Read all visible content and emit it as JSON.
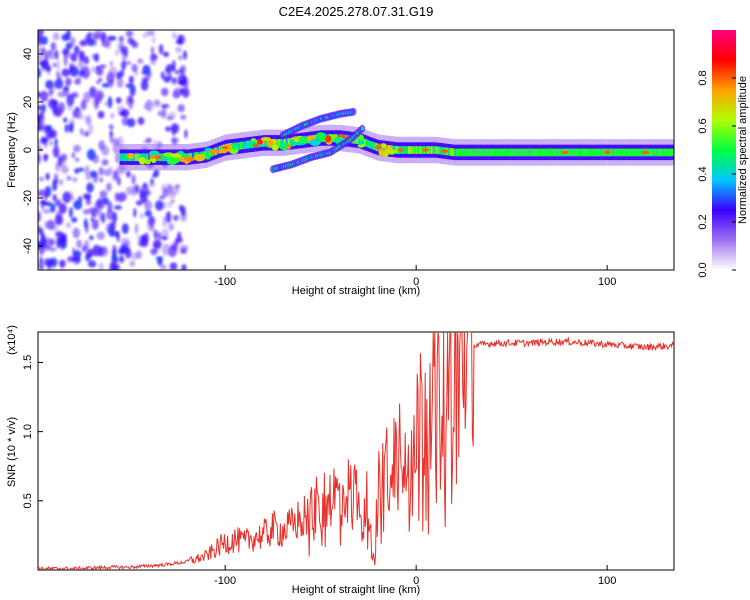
{
  "title": "C2E4.2025.278.07.31.G19",
  "colors": {
    "snr_line": "#e8312a",
    "frame": "#000000",
    "spectrogram_noise": "#8a3cf0",
    "background": "#ffffff"
  },
  "chart_data": [
    {
      "type": "heatmap",
      "name": "spectrogram",
      "title": "C2E4.2025.278.07.31.G19",
      "xlabel": "Height of straight line (km)",
      "ylabel": "Frequency (Hz)",
      "xlim": [
        -198,
        135
      ],
      "ylim": [
        -50,
        50
      ],
      "xticks": [
        -100,
        0,
        100
      ],
      "xtick_labels": [
        "-100",
        "0",
        "100"
      ],
      "yticks": [
        -40,
        -20,
        0,
        20,
        40
      ],
      "ytick_labels": [
        "-40",
        "-20",
        "0",
        "20",
        "40"
      ],
      "ridge": {
        "x": [
          -155,
          -140,
          -130,
          -120,
          -110,
          -100,
          -90,
          -80,
          -70,
          -60,
          -50,
          -40,
          -30,
          -20,
          -10,
          0,
          10,
          20,
          40,
          60,
          80,
          100,
          120,
          135
        ],
        "frequency": [
          -3,
          -3,
          -3,
          -3,
          -2,
          1,
          2,
          3,
          3,
          4,
          5,
          5,
          4,
          1,
          0,
          0,
          0,
          -1,
          -1,
          -1,
          -1,
          -1,
          -1,
          -1
        ]
      },
      "secondary_branch": {
        "x": [
          -75,
          -65,
          -55,
          -45,
          -35,
          -28
        ],
        "frequency": [
          -8,
          -6,
          -3,
          -1,
          4,
          9
        ]
      },
      "upper_branch": {
        "x": [
          -70,
          -60,
          -50,
          -40,
          -32
        ],
        "frequency": [
          6,
          10,
          13,
          15,
          16
        ]
      },
      "noise_region_x": [
        -198,
        -120
      ],
      "colorbar": {
        "label": "Normalized spectral amplitude",
        "range": [
          0,
          1
        ],
        "ticks": [
          0.0,
          0.2,
          0.4,
          0.6,
          0.8
        ],
        "tick_labels": [
          "0.0",
          "0.2",
          "0.4",
          "0.6",
          "0.8"
        ],
        "colors": [
          "#ffffff",
          "#a070f0",
          "#3a00ff",
          "#00c8ff",
          "#00ff40",
          "#b0ff00",
          "#ffa000",
          "#ff0000",
          "#ff0080"
        ]
      }
    },
    {
      "type": "line",
      "name": "snr",
      "xlabel": "Height of straight line (km)",
      "ylabel": "SNR (10 * v/v)",
      "y_scale_label": "(x10⁴)",
      "xlim": [
        -198,
        135
      ],
      "ylim": [
        0,
        1.72
      ],
      "xticks": [
        -100,
        0,
        100
      ],
      "xtick_labels": [
        "-100",
        "0",
        "100"
      ],
      "yticks": [
        0.5,
        1.0,
        1.5
      ],
      "ytick_labels": [
        "0.5",
        "1.0",
        "1.5"
      ],
      "series": [
        {
          "name": "SNR",
          "x": [
            -198,
            -180,
            -160,
            -150,
            -140,
            -130,
            -120,
            -110,
            -105,
            -100,
            -95,
            -90,
            -85,
            -80,
            -75,
            -70,
            -65,
            -60,
            -55,
            -50,
            -45,
            -40,
            -35,
            -30,
            -25,
            -22,
            -20,
            -15,
            -10,
            -5,
            0,
            5,
            10,
            15,
            20,
            25,
            30,
            40,
            50,
            60,
            70,
            80,
            90,
            100,
            110,
            120,
            135
          ],
          "y": [
            0.01,
            0.01,
            0.02,
            0.02,
            0.03,
            0.04,
            0.06,
            0.1,
            0.15,
            0.2,
            0.22,
            0.2,
            0.24,
            0.25,
            0.3,
            0.28,
            0.32,
            0.38,
            0.45,
            0.48,
            0.55,
            0.55,
            0.58,
            0.6,
            0.5,
            0.05,
            0.6,
            0.8,
            0.95,
            1.0,
            1.1,
            1.25,
            1.35,
            1.45,
            1.5,
            1.58,
            1.62,
            1.64,
            1.64,
            1.64,
            1.65,
            1.65,
            1.64,
            1.63,
            1.62,
            1.61,
            1.62
          ]
        }
      ]
    }
  ]
}
